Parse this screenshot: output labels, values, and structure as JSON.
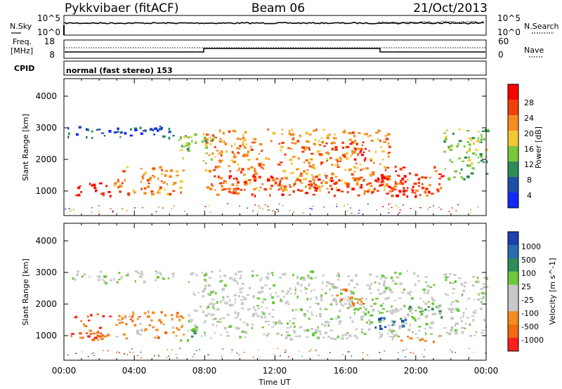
{
  "header": {
    "station": "Pykkvibaer (fitACF)",
    "beam": "Beam 06",
    "date": "21/Oct/2013"
  },
  "status_panel": {
    "left_label": "N.Sky",
    "left_ticks": [
      "10^5",
      "10^0"
    ],
    "right_label": "N.Search",
    "right_ticks": [
      "10^5",
      "10^0"
    ]
  },
  "freq_panel": {
    "left_label_line1": "Freq.",
    "left_label_line2": "[MHz]",
    "left_ticks": [
      "18",
      "8"
    ],
    "right_label": "Nave",
    "right_ticks": [
      "60",
      "0"
    ]
  },
  "cpid_panel": {
    "label": "CPID",
    "text": "normal (fast stereo) 153"
  },
  "chart_data": [
    {
      "type": "heatmap",
      "panel": "power",
      "xlabel": "Time UT",
      "ylabel": "Slant Range [km]",
      "x_range_hours": [
        0,
        24
      ],
      "ylim": [
        180,
        4600
      ],
      "y_ticks": [
        "4000",
        "3000",
        "2000",
        "1000"
      ],
      "colorbar_label": "Power [dB]",
      "colorbar_ticks": [
        "28",
        "24",
        "20",
        "16",
        "12",
        "8",
        "4"
      ],
      "colorbar_colors": [
        "#ff0000",
        "#f2400a",
        "#f58c1e",
        "#f2c832",
        "#79c83c",
        "#2e8c5a",
        "#1e4fa8",
        "#1428f5"
      ],
      "regions": [
        {
          "t0": 0.2,
          "t1": 6.2,
          "r0": 2700,
          "r1": 3100,
          "level": 6
        },
        {
          "t0": 0.3,
          "t1": 2.6,
          "r0": 830,
          "r1": 1300,
          "level": 0
        },
        {
          "t0": 2.8,
          "t1": 6.8,
          "r0": 900,
          "r1": 1800,
          "level": 2
        },
        {
          "t0": 6.5,
          "t1": 8.6,
          "r0": 1900,
          "r1": 2900,
          "level": 4
        },
        {
          "t0": 8.0,
          "t1": 18.5,
          "r0": 1000,
          "r1": 3000,
          "level": 2
        },
        {
          "t0": 8.5,
          "t1": 20.5,
          "r0": 850,
          "r1": 1500,
          "level": 1
        },
        {
          "t0": 15.5,
          "t1": 17.2,
          "r0": 2000,
          "r1": 2600,
          "level": 0
        },
        {
          "t0": 18.0,
          "t1": 21.5,
          "r0": 800,
          "r1": 1800,
          "level": 1
        },
        {
          "t0": 21.5,
          "t1": 24.0,
          "r0": 1300,
          "r1": 3000,
          "level": 4
        }
      ]
    },
    {
      "type": "heatmap",
      "panel": "velocity",
      "xlabel": "Time UT",
      "ylabel": "Slant Range [km]",
      "x_range_hours": [
        0,
        24
      ],
      "ylim": [
        180,
        4600
      ],
      "y_ticks": [
        "4000",
        "3000",
        "2000",
        "1000"
      ],
      "colorbar_label": "Velocity [m s^-1]",
      "colorbar_ticks": [
        "1000",
        "500",
        "100",
        "25",
        "-25",
        "-100",
        "-500",
        "-1000"
      ],
      "colorbar_colors": [
        "#1e3fae",
        "#2a6cb0",
        "#2e8c5a",
        "#6cc83c",
        "#c8c8c8",
        "#c8c8c8",
        "#f58c1e",
        "#f06a0f",
        "#ff1e1e"
      ],
      "regions": [
        {
          "t0": 0.2,
          "t1": 6.2,
          "r0": 2700,
          "r1": 3100,
          "level": 4
        },
        {
          "t0": 0.3,
          "t1": 2.6,
          "r0": 830,
          "r1": 1700,
          "level": 7
        },
        {
          "t0": 2.8,
          "t1": 6.8,
          "r0": 900,
          "r1": 1800,
          "level": 6
        },
        {
          "t0": 6.6,
          "t1": 7.4,
          "r0": 800,
          "r1": 1200,
          "level": 3
        },
        {
          "t0": 7.0,
          "t1": 21.0,
          "r0": 900,
          "r1": 3100,
          "level": 4
        },
        {
          "t0": 15.0,
          "t1": 17.0,
          "r0": 1900,
          "r1": 2500,
          "level": 6
        },
        {
          "t0": 17.5,
          "t1": 19.5,
          "r0": 1200,
          "r1": 1600,
          "level": 1
        },
        {
          "t0": 19.0,
          "t1": 21.5,
          "r0": 1600,
          "r1": 2100,
          "level": 3
        },
        {
          "t0": 19.0,
          "t1": 21.3,
          "r0": 780,
          "r1": 1000,
          "level": 6
        },
        {
          "t0": 21.5,
          "t1": 24.0,
          "r0": 1000,
          "r1": 3000,
          "level": 4
        }
      ]
    }
  ],
  "x_axis": {
    "ticks": [
      "00:00",
      "04:00",
      "08:00",
      "12:00",
      "16:00",
      "20:00",
      "00:00"
    ],
    "label": "Time UT"
  }
}
